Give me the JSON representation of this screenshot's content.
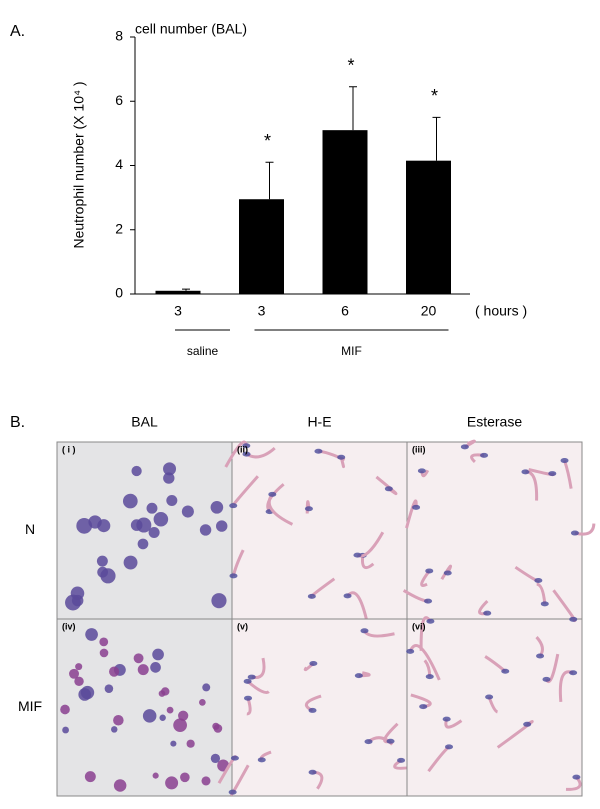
{
  "panel_labels": [
    "A.",
    "B."
  ],
  "chart_data": {
    "type": "bar",
    "title": "cell number (BAL)",
    "y_label": "Neutrophil number (X 10⁴ )",
    "x_unit": "( hours )",
    "categories": [
      "3",
      "3",
      "6",
      "20"
    ],
    "values": [
      0.1,
      2.95,
      5.1,
      4.15
    ],
    "errors": [
      0.05,
      1.15,
      1.35,
      1.35
    ],
    "annotations": [
      null,
      "*",
      "*",
      "*"
    ],
    "color": "#000000",
    "groups": [
      {
        "name": "saline",
        "categories": [
          0
        ]
      },
      {
        "name": "MIF",
        "categories": [
          1,
          2,
          3
        ]
      }
    ],
    "ylim": [
      0,
      8
    ],
    "yticks": [
      0,
      2,
      4,
      6,
      8
    ],
    "grid": false
  },
  "histology": {
    "columns": [
      "BAL",
      "H-E",
      "Esterase"
    ],
    "rows": [
      "N",
      "MIF"
    ],
    "panels": [
      "( i )",
      "(ii)",
      "(iii)",
      "(iv)",
      "(v)",
      "(vi)"
    ]
  }
}
